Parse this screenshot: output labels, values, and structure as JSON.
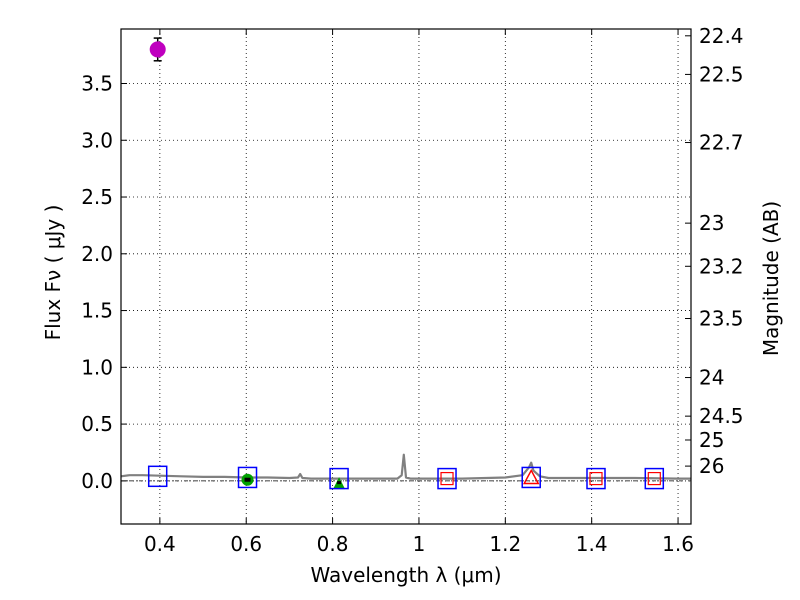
{
  "chart_data": {
    "type": "scatter",
    "xlabel": "Wavelength  λ (μm)",
    "ylabel": "Flux  Fν  ( μJy )",
    "ylabel_right": "Magnitude (AB)",
    "xlim": [
      0.31,
      1.63
    ],
    "ylim": [
      -0.38,
      3.98
    ],
    "x_ticks": [
      0.4,
      0.6,
      0.8,
      1.0,
      1.2,
      1.4,
      1.6
    ],
    "x_tick_labels": [
      "0.4",
      "0.6",
      "0.8",
      "1",
      "1.2",
      "1.4",
      "1.6"
    ],
    "y_ticks": [
      0.0,
      0.5,
      1.0,
      1.5,
      2.0,
      2.5,
      3.0,
      3.5
    ],
    "y_tick_labels": [
      "0.0",
      "0.5",
      "1.0",
      "1.5",
      "2.0",
      "2.5",
      "3.0",
      "3.5"
    ],
    "right_ticks": [
      {
        "flux": 3.92,
        "label": "22.4"
      },
      {
        "flux": 3.58,
        "label": "22.5"
      },
      {
        "flux": 2.98,
        "label": "22.7"
      },
      {
        "flux": 2.27,
        "label": "23"
      },
      {
        "flux": 1.89,
        "label": "23.2"
      },
      {
        "flux": 1.43,
        "label": "23.5"
      },
      {
        "flux": 0.91,
        "label": "24"
      },
      {
        "flux": 0.57,
        "label": "24.5"
      },
      {
        "flux": 0.36,
        "label": "25"
      },
      {
        "flux": 0.13,
        "label": "26"
      }
    ],
    "grid": true,
    "series": [
      {
        "name": "measured flux",
        "marker": "circle",
        "color": "#bf00bf",
        "points": [
          {
            "x": 0.395,
            "y": 3.8,
            "err": 0.1
          }
        ]
      },
      {
        "name": "green points",
        "marker": "circle",
        "color": "#00a000",
        "points": [
          {
            "x": 0.603,
            "y": 0.01,
            "err": 0.02
          }
        ]
      },
      {
        "name": "green triangle",
        "marker": "triangle",
        "color": "#00a000",
        "points": [
          {
            "x": 0.815,
            "y": -0.02,
            "err": 0.02
          }
        ]
      },
      {
        "name": "model band flux",
        "marker": "square",
        "color": "#0000ff",
        "points": [
          {
            "x": 0.395,
            "y": 0.04
          },
          {
            "x": 0.603,
            "y": 0.03
          },
          {
            "x": 0.815,
            "y": 0.02
          },
          {
            "x": 1.065,
            "y": 0.02
          },
          {
            "x": 1.26,
            "y": 0.03
          },
          {
            "x": 1.41,
            "y": 0.02
          },
          {
            "x": 1.545,
            "y": 0.02
          }
        ]
      },
      {
        "name": "red points",
        "marker": "square-small",
        "color": "#ff0000",
        "points": [
          {
            "x": 1.065,
            "y": 0.02
          },
          {
            "x": 1.41,
            "y": 0.02
          },
          {
            "x": 1.545,
            "y": 0.02
          }
        ]
      },
      {
        "name": "red triangle",
        "marker": "triangle-open",
        "color": "#ff0000",
        "points": [
          {
            "x": 1.26,
            "y": 0.03
          }
        ]
      }
    ],
    "model_spectrum": {
      "color": "#808080",
      "x": [
        0.31,
        0.33,
        0.36,
        0.4,
        0.45,
        0.5,
        0.55,
        0.6,
        0.65,
        0.7,
        0.72,
        0.725,
        0.73,
        0.75,
        0.8,
        0.85,
        0.9,
        0.95,
        0.96,
        0.965,
        0.97,
        0.98,
        1.0,
        1.1,
        1.2,
        1.24,
        1.255,
        1.26,
        1.265,
        1.28,
        1.3,
        1.4,
        1.5,
        1.6,
        1.63
      ],
      "y": [
        0.04,
        0.05,
        0.05,
        0.045,
        0.04,
        0.035,
        0.035,
        0.03,
        0.03,
        0.025,
        0.03,
        0.06,
        0.025,
        0.02,
        0.02,
        0.02,
        0.02,
        0.02,
        0.05,
        0.23,
        0.03,
        0.02,
        0.02,
        0.02,
        0.03,
        0.05,
        0.12,
        0.16,
        0.09,
        0.04,
        0.025,
        0.025,
        0.025,
        0.02,
        0.02
      ]
    },
    "zero_line": 0.0
  }
}
